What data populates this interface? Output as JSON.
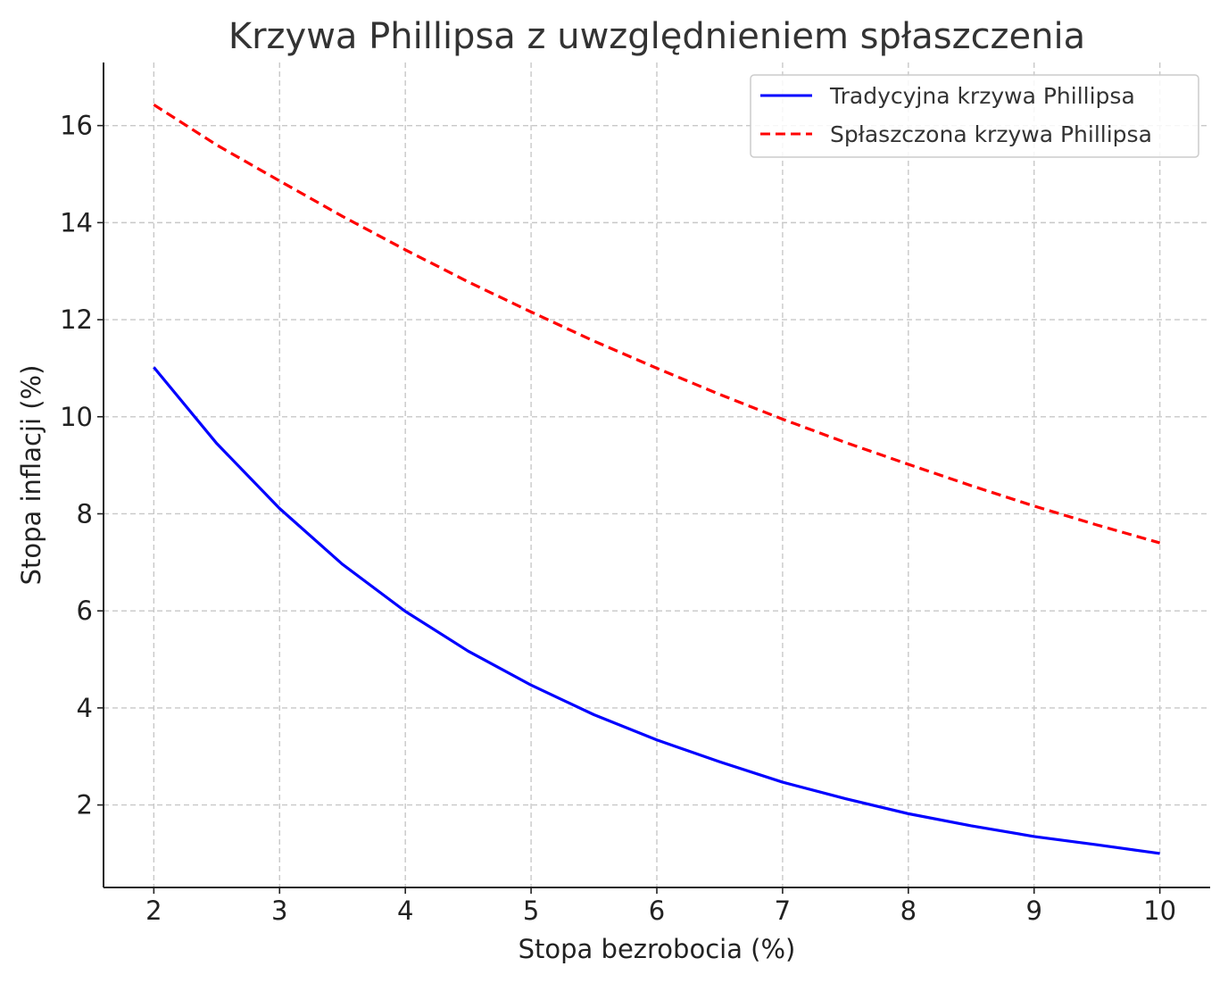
{
  "chart_data": {
    "type": "line",
    "title": "Krzywa Phillipsa z uwzględnieniem spłaszczenia",
    "xlabel": "Stopa bezrobocia (%)",
    "ylabel": "Stopa inflacji (%)",
    "xlim": [
      1.6,
      10.4
    ],
    "ylim": [
      0.3,
      17.3
    ],
    "xticks": [
      2,
      3,
      4,
      5,
      6,
      7,
      8,
      9,
      10
    ],
    "yticks": [
      2,
      4,
      6,
      8,
      10,
      12,
      14,
      16
    ],
    "grid": true,
    "legend_position": "top-right",
    "series": [
      {
        "name": "Tradycyjna krzywa Phillipsa",
        "color": "#0000ff",
        "style": "solid",
        "x": [
          2,
          2.5,
          3,
          3.5,
          4,
          4.5,
          5,
          5.5,
          6,
          6.5,
          7,
          7.5,
          8,
          8.5,
          9,
          9.5,
          10
        ],
        "y": [
          11.02,
          9.45,
          8.11,
          6.96,
          5.99,
          5.17,
          4.47,
          3.86,
          3.34,
          2.89,
          2.47,
          2.13,
          1.82,
          1.57,
          1.35,
          1.18,
          1.0
        ]
      },
      {
        "name": "Spłaszczona krzywa Phillipsa",
        "color": "#ff0000",
        "style": "dashed",
        "x": [
          2,
          2.5,
          3,
          3.5,
          4,
          4.5,
          5,
          5.5,
          6,
          6.5,
          7,
          7.5,
          8,
          8.5,
          9,
          9.5,
          10
        ],
        "y": [
          16.43,
          15.6,
          14.86,
          14.13,
          13.44,
          12.78,
          12.16,
          11.56,
          11.0,
          10.46,
          9.95,
          9.47,
          9.02,
          8.58,
          8.16,
          7.77,
          7.4
        ]
      }
    ]
  }
}
